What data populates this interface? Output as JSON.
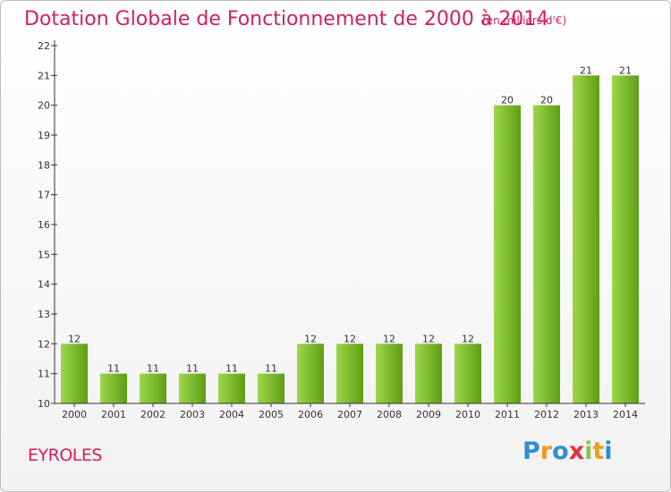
{
  "title": "Dotation Globale de Fonctionnement de 2000 à 2014",
  "subtitle": "(en milliers d'€)",
  "commune": "EYROLES",
  "logo": {
    "letters": [
      "P",
      "r",
      "o",
      "x",
      "i",
      "t",
      "i"
    ],
    "colors": [
      "#2a8fd6",
      "#f39a1e",
      "#2a8fd6",
      "#e0333c",
      "#8bc34a",
      "#f39a1e",
      "#2a8fd6"
    ]
  },
  "colors": {
    "title": "#d02060",
    "bar_light": "#9ed64a",
    "bar_dark": "#5e9e14",
    "axis": "#333333",
    "grid": "#cccccc"
  },
  "chart_data": {
    "type": "bar",
    "categories": [
      "2000",
      "2001",
      "2002",
      "2003",
      "2004",
      "2005",
      "2006",
      "2007",
      "2008",
      "2009",
      "2010",
      "2011",
      "2012",
      "2013",
      "2014"
    ],
    "values": [
      12,
      11,
      11,
      11,
      11,
      11,
      12,
      12,
      12,
      12,
      12,
      20,
      20,
      21,
      21
    ],
    "ylim": [
      10,
      22
    ],
    "yticks": [
      10,
      11,
      12,
      13,
      14,
      15,
      16,
      17,
      18,
      19,
      20,
      21,
      22
    ],
    "grid": false
  }
}
